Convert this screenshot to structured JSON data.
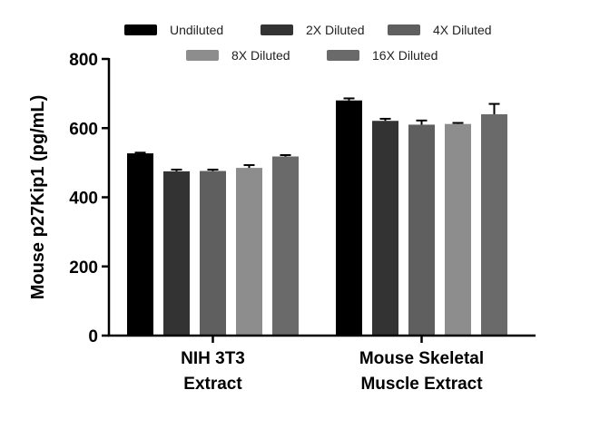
{
  "chart_data": {
    "type": "bar",
    "ylabel": "Mouse p27Kip1 (pg/mL)",
    "xlabel": "",
    "ylim": [
      0,
      800
    ],
    "yticks": [
      0,
      200,
      400,
      600,
      800
    ],
    "grid": false,
    "legend_placement": "top",
    "categories": [
      [
        "NIH 3T3",
        "Extract"
      ],
      [
        "Mouse Skeletal",
        "Muscle Extract"
      ]
    ],
    "series": [
      {
        "name": "Undiluted",
        "color": "#000000",
        "values": [
          527,
          680
        ],
        "errors": [
          2,
          6
        ]
      },
      {
        "name": "2X Diluted",
        "color": "#333333",
        "values": [
          475,
          621
        ],
        "errors": [
          5,
          6
        ]
      },
      {
        "name": "4X Diluted",
        "color": "#5f5f5f",
        "values": [
          476,
          610
        ],
        "errors": [
          4,
          12
        ]
      },
      {
        "name": "8X Diluted",
        "color": "#8d8d8d",
        "values": [
          485,
          612
        ],
        "errors": [
          8,
          3
        ]
      },
      {
        "name": "16X Diluted",
        "color": "#6a6a6a",
        "values": [
          518,
          640
        ],
        "errors": [
          4,
          30
        ]
      }
    ]
  }
}
